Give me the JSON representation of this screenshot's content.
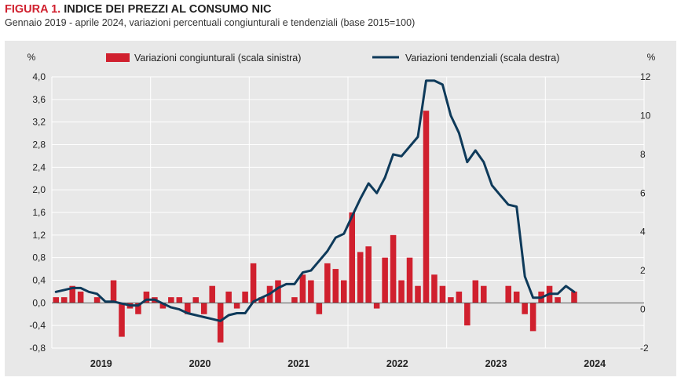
{
  "header": {
    "figure_label": "FIGURA 1.",
    "title": "INDICE DEI PREZZI AL CONSUMO NIC",
    "subtitle": "Gennaio 2019 - aprile 2024, variazioni percentuali congiunturali e tendenziali (base 2015=100)"
  },
  "colors": {
    "bars": "#d0202e",
    "line": "#0e3a5a",
    "panel": "#e8e8e8",
    "grid": "#ffffff"
  },
  "chart_data": {
    "type": "bar",
    "secondary_type": "line",
    "grid": true,
    "legend_position": "top",
    "left_axis_unit": "%",
    "right_axis_unit": "%",
    "ylim_left": [
      -0.8,
      4.0
    ],
    "ylim_right": [
      -2,
      12
    ],
    "left_ticks": [
      "-0,8",
      "-0,4",
      "0,0",
      "0,4",
      "0,8",
      "1,2",
      "1,6",
      "2,0",
      "2,4",
      "2,8",
      "3,2",
      "3,6",
      "4,0"
    ],
    "right_ticks": [
      "-2",
      "0",
      "2",
      "4",
      "6",
      "8",
      "10",
      "12"
    ],
    "years": [
      "2019",
      "2020",
      "2021",
      "2022",
      "2023",
      "2024"
    ],
    "series": [
      {
        "name": "Variazioni congiunturali (scala sinistra)",
        "axis": "left",
        "values": [
          0.1,
          0.1,
          0.3,
          0.2,
          0.0,
          0.1,
          0.0,
          0.4,
          -0.6,
          -0.1,
          -0.2,
          0.2,
          0.1,
          -0.1,
          0.1,
          0.1,
          -0.2,
          0.1,
          -0.2,
          0.3,
          -0.7,
          0.2,
          -0.1,
          0.2,
          0.7,
          0.1,
          0.3,
          0.4,
          0.0,
          0.1,
          0.5,
          0.4,
          -0.2,
          0.7,
          0.6,
          0.4,
          1.6,
          0.9,
          1.0,
          -0.1,
          0.8,
          1.2,
          0.4,
          0.8,
          0.3,
          3.4,
          0.5,
          0.3,
          0.1,
          0.2,
          -0.4,
          0.4,
          0.3,
          0.0,
          0.0,
          0.3,
          0.2,
          -0.2,
          -0.5,
          0.2,
          0.3,
          0.1,
          0.0,
          0.2
        ]
      },
      {
        "name": "Variazioni tendenziali (scala destra)",
        "axis": "right",
        "values": [
          0.9,
          1.0,
          1.1,
          1.1,
          0.9,
          0.8,
          0.4,
          0.4,
          0.3,
          0.2,
          0.2,
          0.5,
          0.5,
          0.3,
          0.1,
          0.0,
          -0.2,
          -0.3,
          -0.4,
          -0.5,
          -0.6,
          -0.3,
          -0.2,
          -0.2,
          0.4,
          0.6,
          0.8,
          1.1,
          1.3,
          1.3,
          1.9,
          2.0,
          2.5,
          3.0,
          3.7,
          3.9,
          4.8,
          5.7,
          6.5,
          6.0,
          6.8,
          8.0,
          7.9,
          8.4,
          8.9,
          11.8,
          11.8,
          11.6,
          10.0,
          9.1,
          7.6,
          8.2,
          7.6,
          6.4,
          5.9,
          5.4,
          5.3,
          1.7,
          0.6,
          0.6,
          0.8,
          0.8,
          1.2,
          0.9
        ]
      }
    ]
  }
}
